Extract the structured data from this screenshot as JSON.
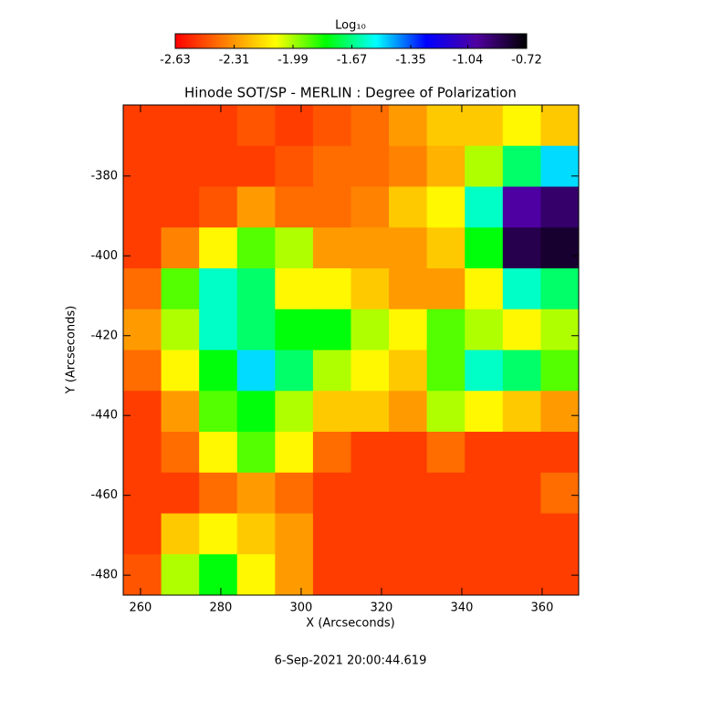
{
  "chart_data": {
    "type": "heatmap",
    "title": "Hinode SOT/SP - MERLIN : Degree of Polarization",
    "xlabel": "X (Arcseconds)",
    "ylabel": "Y (Arcseconds)",
    "footer": "6-Sep-2021 20:00:44.619",
    "colorbar_label": "Log₁₀",
    "zlim": [
      -2.63,
      -0.72
    ],
    "colorbar_ticks": [
      -2.63,
      -2.31,
      -1.99,
      -1.67,
      -1.35,
      -1.04,
      -0.72
    ],
    "colorscale": [
      "#ff0000",
      "#ff8000",
      "#ffff00",
      "#00ff00",
      "#00ffff",
      "#0000ff",
      "#5000a0",
      "#000000"
    ],
    "xlim": [
      255.7,
      369.1
    ],
    "xticks": [
      260,
      280,
      300,
      320,
      340,
      360
    ],
    "ylim": [
      -485.0,
      -362.2
    ],
    "yticks": [
      -380,
      -400,
      -420,
      -440,
      -460,
      -480
    ],
    "z": [
      [
        -2.5,
        -2.5,
        -2.5,
        -2.45,
        -2.5,
        -2.45,
        -2.4,
        -2.3,
        -2.2,
        -2.2,
        -2.1,
        -2.2
      ],
      [
        -2.5,
        -2.5,
        -2.5,
        -2.5,
        -2.45,
        -2.4,
        -2.4,
        -2.35,
        -2.25,
        -2.0,
        -1.7,
        -1.5
      ],
      [
        -2.5,
        -2.5,
        -2.45,
        -2.3,
        -2.4,
        -2.4,
        -2.35,
        -2.2,
        -2.1,
        -1.6,
        -1.0,
        -0.9
      ],
      [
        -2.5,
        -2.35,
        -2.1,
        -1.9,
        -2.0,
        -2.3,
        -2.3,
        -2.3,
        -2.2,
        -1.8,
        -0.85,
        -0.8
      ],
      [
        -2.4,
        -1.9,
        -1.6,
        -1.7,
        -2.1,
        -2.1,
        -2.2,
        -2.3,
        -2.3,
        -2.1,
        -1.6,
        -1.7
      ],
      [
        -2.3,
        -2.0,
        -1.6,
        -1.7,
        -1.8,
        -1.8,
        -2.0,
        -2.1,
        -1.9,
        -2.0,
        -2.1,
        -2.0
      ],
      [
        -2.4,
        -2.1,
        -1.8,
        -1.5,
        -1.7,
        -2.0,
        -2.1,
        -2.2,
        -1.9,
        -1.6,
        -1.7,
        -1.9
      ],
      [
        -2.5,
        -2.3,
        -1.9,
        -1.8,
        -2.0,
        -2.2,
        -2.2,
        -2.3,
        -2.0,
        -2.1,
        -2.2,
        -2.3
      ],
      [
        -2.5,
        -2.4,
        -2.1,
        -1.9,
        -2.1,
        -2.4,
        -2.5,
        -2.5,
        -2.4,
        -2.5,
        -2.5,
        -2.5
      ],
      [
        -2.5,
        -2.5,
        -2.4,
        -2.3,
        -2.4,
        -2.5,
        -2.5,
        -2.5,
        -2.5,
        -2.5,
        -2.5,
        -2.4
      ],
      [
        -2.5,
        -2.2,
        -2.1,
        -2.2,
        -2.3,
        -2.5,
        -2.5,
        -2.5,
        -2.5,
        -2.5,
        -2.5,
        -2.5
      ],
      [
        -2.45,
        -2.0,
        -1.8,
        -2.1,
        -2.3,
        -2.5,
        -2.5,
        -2.5,
        -2.5,
        -2.5,
        -2.5,
        -2.5
      ]
    ]
  }
}
